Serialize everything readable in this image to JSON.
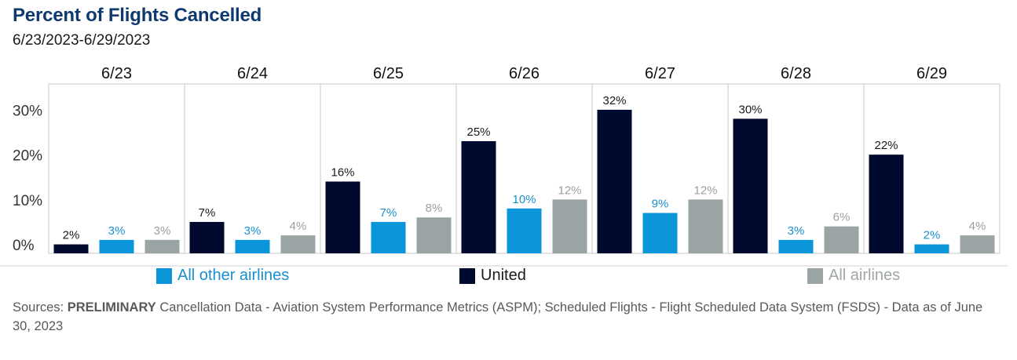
{
  "header": {
    "title": "Percent of Flights Cancelled",
    "subtitle": "6/23/2023-6/29/2023"
  },
  "chart_data": {
    "type": "bar",
    "title": "Percent of Flights Cancelled",
    "subtitle": "6/23/2023-6/29/2023",
    "categories": [
      "6/23",
      "6/24",
      "6/25",
      "6/26",
      "6/27",
      "6/28",
      "6/29"
    ],
    "y_ticks": [
      "0%",
      "10%",
      "20%",
      "30%"
    ],
    "ylim": [
      0,
      36
    ],
    "grid": false,
    "legend_position": "bottom",
    "series": [
      {
        "name": "United",
        "color": "#000a2e",
        "label_color": "#1a1a1a",
        "values": [
          2,
          7,
          16,
          25,
          32,
          30,
          22
        ],
        "labels": [
          "2%",
          "7%",
          "16%",
          "25%",
          "32%",
          "30%",
          "22%"
        ]
      },
      {
        "name": "All other airlines",
        "color": "#0a96d8",
        "label_color": "#1a8fd0",
        "values": [
          3,
          3,
          7,
          10,
          9,
          3,
          2
        ],
        "labels": [
          "3%",
          "3%",
          "7%",
          "10%",
          "9%",
          "3%",
          "2%"
        ]
      },
      {
        "name": "All airlines",
        "color": "#9ba4a4",
        "label_color": "#9aa0a0",
        "values": [
          3,
          4,
          8,
          12,
          12,
          6,
          4
        ],
        "labels": [
          "3%",
          "4%",
          "8%",
          "12%",
          "12%",
          "6%",
          "4%"
        ]
      }
    ]
  },
  "legend": {
    "items": [
      {
        "label": "All other airlines",
        "color": "#0a96d8",
        "text_color": "#1a8fd0"
      },
      {
        "label": "United",
        "color": "#000a2e",
        "text_color": "#1a1a1a"
      },
      {
        "label": "All airlines",
        "color": "#9ba4a4",
        "text_color": "#a0a6a6"
      }
    ]
  },
  "footer": {
    "prefix": "Sources: ",
    "bold": "PRELIMINARY",
    "rest": " Cancellation Data - Aviation System Performance Metrics (ASPM); Scheduled Flights - Flight Scheduled Data System (FSDS) - Data as of June 30, 2023"
  }
}
